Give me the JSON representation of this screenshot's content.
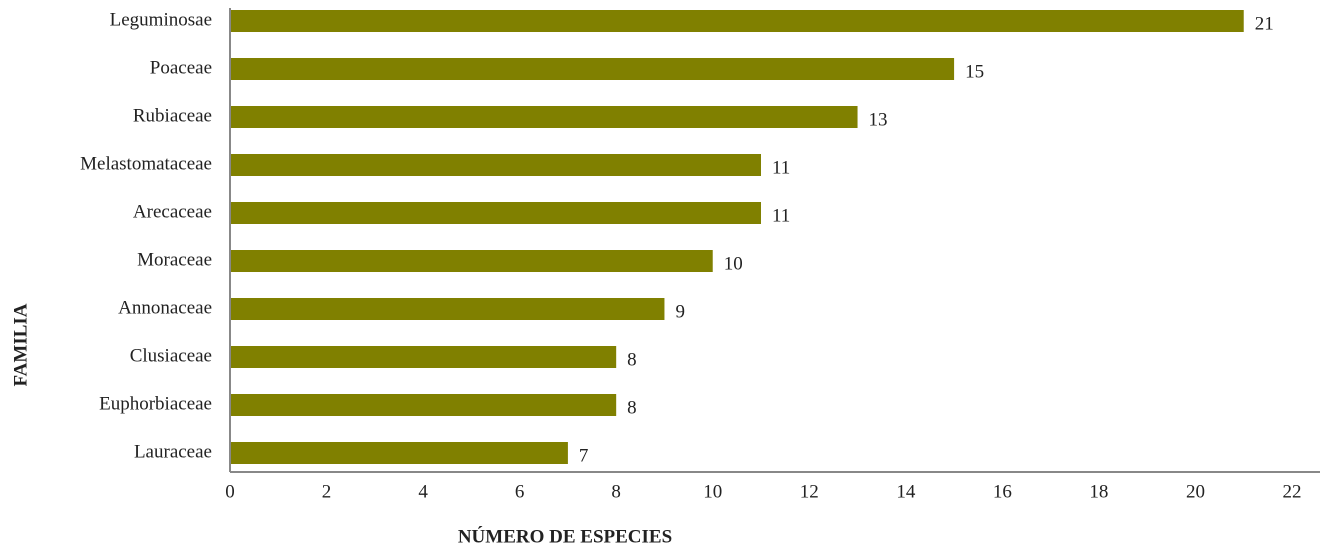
{
  "chart_data": {
    "type": "bar",
    "orientation": "horizontal",
    "x_label": "NÚMERO DE ESPECIES",
    "y_label": "FAMILIA",
    "categories": [
      "Leguminosae",
      "Poaceae",
      "Rubiaceae",
      "Melastomataceae",
      "Arecaceae",
      "Moraceae",
      "Annonaceae",
      "Clusiaceae",
      "Euphorbiaceae",
      "Lauraceae"
    ],
    "values": [
      21,
      15,
      13,
      11,
      11,
      10,
      9,
      8,
      8,
      7
    ],
    "color": "#808000",
    "xlim": [
      0,
      22
    ],
    "xticks": [
      0,
      2,
      4,
      6,
      8,
      10,
      12,
      14,
      16,
      18,
      20,
      22
    ],
    "grid": false
  }
}
